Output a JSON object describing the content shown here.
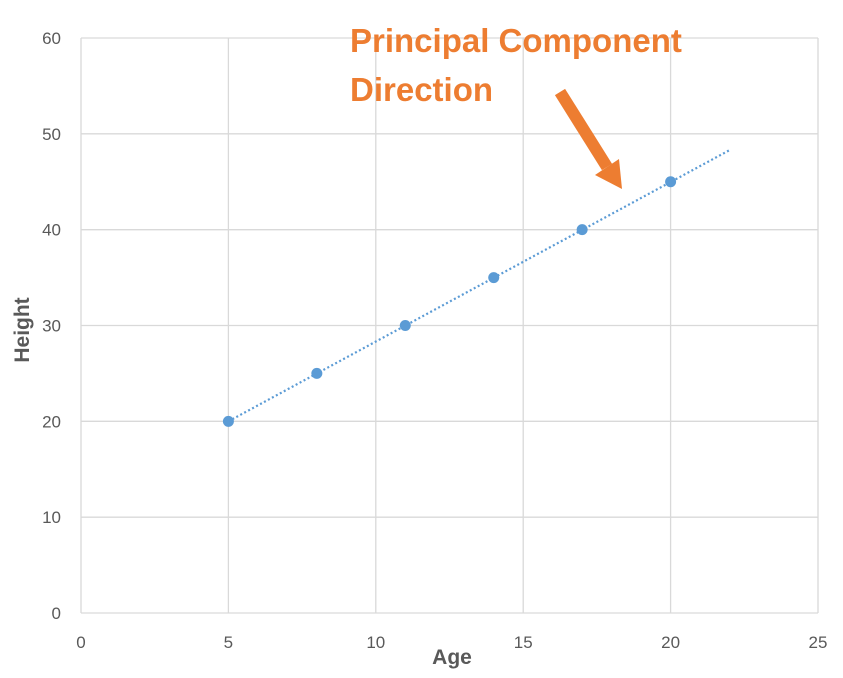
{
  "chart_data": {
    "type": "scatter",
    "xlabel": "Age",
    "ylabel": "Height",
    "xlim": [
      0,
      25
    ],
    "ylim": [
      0,
      60
    ],
    "x_ticks": [
      0,
      5,
      10,
      15,
      20,
      25
    ],
    "y_ticks": [
      0,
      10,
      20,
      30,
      40,
      50,
      60
    ],
    "grid": true,
    "series": [
      {
        "x": [
          5,
          8,
          11,
          14,
          17,
          20
        ],
        "y": [
          20,
          25,
          30,
          35,
          40,
          45
        ],
        "color": "#5B9BD5"
      }
    ],
    "trendline": {
      "style": "dotted",
      "color": "#5B9BD5",
      "from": [
        5,
        20
      ],
      "to": [
        22,
        48.3
      ]
    },
    "annotation": {
      "lines": [
        "Principal Component",
        "Direction"
      ],
      "color": "#ED7D31"
    }
  },
  "colors": {
    "grid": "#D9D9D9",
    "axis_text": "#595959",
    "background": "#FFFFFF"
  }
}
